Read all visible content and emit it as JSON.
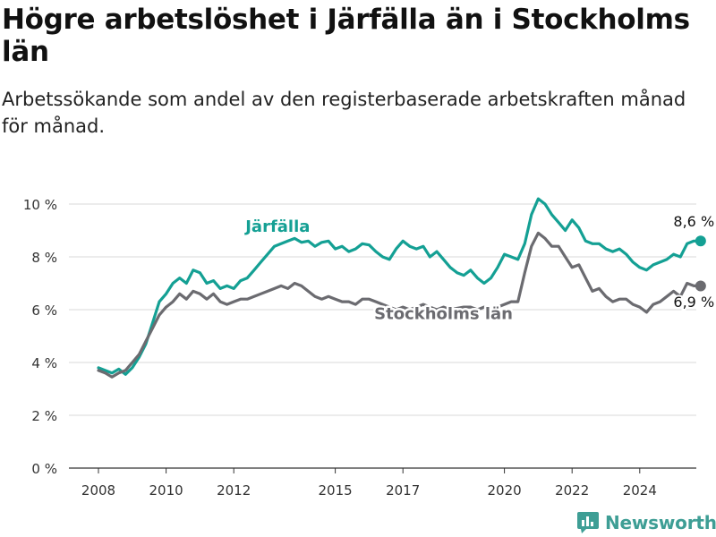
{
  "title": "Högre arbetslöshet i Järfälla än i Stockholms län",
  "subtitle": "Arbetssökande som andel av den registerbaserade arbetskraften månad för månad.",
  "brand": "Newsworthy",
  "colors": {
    "jarfalla": "#14a094",
    "stockholm": "#6b6b70",
    "grid": "#d9d9d9",
    "axis": "#333333",
    "brand": "#3e9e95"
  },
  "chart_data": {
    "type": "line",
    "title": "Högre arbetslöshet i Järfälla än i Stockholms län",
    "ylabel": "",
    "xlabel": "",
    "x_unit": "year (decimal, monthly data)",
    "y_unit": "%",
    "xlim": [
      2007.0,
      2025.8
    ],
    "ylim": [
      0,
      10
    ],
    "y_ticks": [
      0,
      2,
      4,
      6,
      8,
      10
    ],
    "y_tick_labels": [
      "0 %",
      "2 %",
      "4 %",
      "6 %",
      "8 %",
      "10 %"
    ],
    "x_ticks": [
      2008,
      2010,
      2012,
      2015,
      2017,
      2020,
      2022,
      2024
    ],
    "x_tick_labels": [
      "2008",
      "2010",
      "2012",
      "2015",
      "2017",
      "2020",
      "2022",
      "2024"
    ],
    "grid": true,
    "legend": "inline labels",
    "series": [
      {
        "name": "Järfälla",
        "color": "#14a094",
        "end_label": "8,6 %",
        "points": [
          [
            2008.0,
            3.8
          ],
          [
            2008.2,
            3.7
          ],
          [
            2008.4,
            3.6
          ],
          [
            2008.6,
            3.75
          ],
          [
            2008.8,
            3.55
          ],
          [
            2009.0,
            3.8
          ],
          [
            2009.2,
            4.2
          ],
          [
            2009.4,
            4.7
          ],
          [
            2009.6,
            5.5
          ],
          [
            2009.8,
            6.3
          ],
          [
            2010.0,
            6.6
          ],
          [
            2010.2,
            7.0
          ],
          [
            2010.4,
            7.2
          ],
          [
            2010.6,
            7.0
          ],
          [
            2010.8,
            7.5
          ],
          [
            2011.0,
            7.4
          ],
          [
            2011.2,
            7.0
          ],
          [
            2011.4,
            7.1
          ],
          [
            2011.6,
            6.8
          ],
          [
            2011.8,
            6.9
          ],
          [
            2012.0,
            6.8
          ],
          [
            2012.2,
            7.1
          ],
          [
            2012.4,
            7.2
          ],
          [
            2012.6,
            7.5
          ],
          [
            2012.8,
            7.8
          ],
          [
            2013.0,
            8.1
          ],
          [
            2013.2,
            8.4
          ],
          [
            2013.4,
            8.5
          ],
          [
            2013.6,
            8.6
          ],
          [
            2013.8,
            8.7
          ],
          [
            2014.0,
            8.55
          ],
          [
            2014.2,
            8.6
          ],
          [
            2014.4,
            8.4
          ],
          [
            2014.6,
            8.55
          ],
          [
            2014.8,
            8.6
          ],
          [
            2015.0,
            8.3
          ],
          [
            2015.2,
            8.4
          ],
          [
            2015.4,
            8.2
          ],
          [
            2015.6,
            8.3
          ],
          [
            2015.8,
            8.5
          ],
          [
            2016.0,
            8.45
          ],
          [
            2016.2,
            8.2
          ],
          [
            2016.4,
            8.0
          ],
          [
            2016.6,
            7.9
          ],
          [
            2016.8,
            8.3
          ],
          [
            2017.0,
            8.6
          ],
          [
            2017.2,
            8.4
          ],
          [
            2017.4,
            8.3
          ],
          [
            2017.6,
            8.4
          ],
          [
            2017.8,
            8.0
          ],
          [
            2018.0,
            8.2
          ],
          [
            2018.2,
            7.9
          ],
          [
            2018.4,
            7.6
          ],
          [
            2018.6,
            7.4
          ],
          [
            2018.8,
            7.3
          ],
          [
            2019.0,
            7.5
          ],
          [
            2019.2,
            7.2
          ],
          [
            2019.4,
            7.0
          ],
          [
            2019.6,
            7.2
          ],
          [
            2019.8,
            7.6
          ],
          [
            2020.0,
            8.1
          ],
          [
            2020.2,
            8.0
          ],
          [
            2020.4,
            7.9
          ],
          [
            2020.6,
            8.5
          ],
          [
            2020.8,
            9.6
          ],
          [
            2021.0,
            10.2
          ],
          [
            2021.2,
            10.0
          ],
          [
            2021.4,
            9.6
          ],
          [
            2021.6,
            9.3
          ],
          [
            2021.8,
            9.0
          ],
          [
            2022.0,
            9.4
          ],
          [
            2022.2,
            9.1
          ],
          [
            2022.4,
            8.6
          ],
          [
            2022.6,
            8.5
          ],
          [
            2022.8,
            8.5
          ],
          [
            2023.0,
            8.3
          ],
          [
            2023.2,
            8.2
          ],
          [
            2023.4,
            8.3
          ],
          [
            2023.6,
            8.1
          ],
          [
            2023.8,
            7.8
          ],
          [
            2024.0,
            7.6
          ],
          [
            2024.2,
            7.5
          ],
          [
            2024.4,
            7.7
          ],
          [
            2024.6,
            7.8
          ],
          [
            2024.8,
            7.9
          ],
          [
            2025.0,
            8.1
          ],
          [
            2025.2,
            8.0
          ],
          [
            2025.4,
            8.5
          ],
          [
            2025.6,
            8.6
          ],
          [
            2025.8,
            8.6
          ]
        ]
      },
      {
        "name": "Stockholms län",
        "color": "#6b6b70",
        "end_label": "6,9 %",
        "points": [
          [
            2008.0,
            3.7
          ],
          [
            2008.2,
            3.6
          ],
          [
            2008.4,
            3.45
          ],
          [
            2008.6,
            3.6
          ],
          [
            2008.8,
            3.7
          ],
          [
            2009.0,
            4.0
          ],
          [
            2009.2,
            4.3
          ],
          [
            2009.4,
            4.8
          ],
          [
            2009.6,
            5.3
          ],
          [
            2009.8,
            5.8
          ],
          [
            2010.0,
            6.1
          ],
          [
            2010.2,
            6.3
          ],
          [
            2010.4,
            6.6
          ],
          [
            2010.6,
            6.4
          ],
          [
            2010.8,
            6.7
          ],
          [
            2011.0,
            6.6
          ],
          [
            2011.2,
            6.4
          ],
          [
            2011.4,
            6.6
          ],
          [
            2011.6,
            6.3
          ],
          [
            2011.8,
            6.2
          ],
          [
            2012.0,
            6.3
          ],
          [
            2012.2,
            6.4
          ],
          [
            2012.4,
            6.4
          ],
          [
            2012.6,
            6.5
          ],
          [
            2012.8,
            6.6
          ],
          [
            2013.0,
            6.7
          ],
          [
            2013.2,
            6.8
          ],
          [
            2013.4,
            6.9
          ],
          [
            2013.6,
            6.8
          ],
          [
            2013.8,
            7.0
          ],
          [
            2014.0,
            6.9
          ],
          [
            2014.2,
            6.7
          ],
          [
            2014.4,
            6.5
          ],
          [
            2014.6,
            6.4
          ],
          [
            2014.8,
            6.5
          ],
          [
            2015.0,
            6.4
          ],
          [
            2015.2,
            6.3
          ],
          [
            2015.4,
            6.3
          ],
          [
            2015.6,
            6.2
          ],
          [
            2015.8,
            6.4
          ],
          [
            2016.0,
            6.4
          ],
          [
            2016.2,
            6.3
          ],
          [
            2016.4,
            6.2
          ],
          [
            2016.6,
            6.1
          ],
          [
            2016.8,
            6.0
          ],
          [
            2017.0,
            6.1
          ],
          [
            2017.2,
            6.0
          ],
          [
            2017.4,
            6.1
          ],
          [
            2017.6,
            6.2
          ],
          [
            2017.8,
            6.1
          ],
          [
            2018.0,
            6.0
          ],
          [
            2018.2,
            6.1
          ],
          [
            2018.4,
            6.0
          ],
          [
            2018.6,
            6.05
          ],
          [
            2018.8,
            6.1
          ],
          [
            2019.0,
            6.1
          ],
          [
            2019.2,
            6.0
          ],
          [
            2019.4,
            6.1
          ],
          [
            2019.6,
            6.0
          ],
          [
            2019.8,
            6.1
          ],
          [
            2020.0,
            6.2
          ],
          [
            2020.2,
            6.3
          ],
          [
            2020.4,
            6.3
          ],
          [
            2020.6,
            7.4
          ],
          [
            2020.8,
            8.4
          ],
          [
            2021.0,
            8.9
          ],
          [
            2021.2,
            8.7
          ],
          [
            2021.4,
            8.4
          ],
          [
            2021.6,
            8.4
          ],
          [
            2021.8,
            8.0
          ],
          [
            2022.0,
            7.6
          ],
          [
            2022.2,
            7.7
          ],
          [
            2022.4,
            7.2
          ],
          [
            2022.6,
            6.7
          ],
          [
            2022.8,
            6.8
          ],
          [
            2023.0,
            6.5
          ],
          [
            2023.2,
            6.3
          ],
          [
            2023.4,
            6.4
          ],
          [
            2023.6,
            6.4
          ],
          [
            2023.8,
            6.2
          ],
          [
            2024.0,
            6.1
          ],
          [
            2024.2,
            5.9
          ],
          [
            2024.4,
            6.2
          ],
          [
            2024.6,
            6.3
          ],
          [
            2024.8,
            6.5
          ],
          [
            2025.0,
            6.7
          ],
          [
            2025.2,
            6.5
          ],
          [
            2025.4,
            7.0
          ],
          [
            2025.6,
            6.9
          ],
          [
            2025.8,
            6.9
          ]
        ]
      }
    ]
  }
}
